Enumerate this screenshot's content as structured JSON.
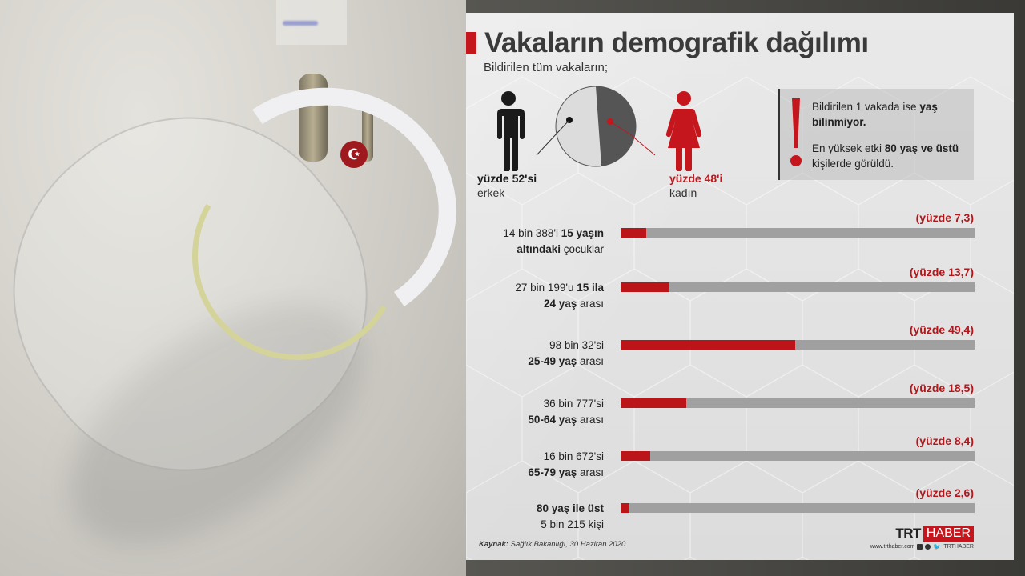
{
  "photo": {
    "description": "face shield hanging on hook with Turkish flag sticker"
  },
  "infographic": {
    "title": "Vakaların demografik dağılımı",
    "subtitle": "Bildirilen tüm vakaların;",
    "male": {
      "pct_label": "yüzde 52'si",
      "label": "erkek"
    },
    "female": {
      "pct_label": "yüzde 48'i",
      "label": "kadın"
    },
    "note": {
      "line1_pre": "Bildirilen 1 vakada ise ",
      "line1_bold": "yaş bilinmiyor.",
      "line2_pre": "En yüksek etki ",
      "line2_bold": "80 yaş ve üstü",
      "line2_post": " kişilerde görüldü."
    },
    "bars": [
      {
        "label_a": "14 bin 388'i ",
        "label_b": "15 yaşın",
        "label_c": "altındaki",
        "label_d": " çocuklar",
        "pct_label": "(yüzde 7,3)",
        "value": 7.3
      },
      {
        "label_a": "27 bin 199'u ",
        "label_b": "15 ila",
        "label_c": "24 yaş",
        "label_d": " arası",
        "pct_label": "(yüzde 13,7)",
        "value": 13.7
      },
      {
        "label_a": "98 bin 32'si",
        "label_b": "",
        "label_c": "25-49 yaş",
        "label_d": " arası",
        "pct_label": "(yüzde 49,4)",
        "value": 49.4
      },
      {
        "label_a": "36 bin 777'si",
        "label_b": "",
        "label_c": "50-64 yaş",
        "label_d": " arası",
        "pct_label": "(yüzde 18,5)",
        "value": 18.5
      },
      {
        "label_a": "16 bin 672'si",
        "label_b": "",
        "label_c": "65-79 yaş",
        "label_d": " arası",
        "pct_label": "(yüzde 8,4)",
        "value": 8.4
      },
      {
        "label_a": "",
        "label_b": "80 yaş ile üst",
        "label_c": "",
        "label_d": "5 bin 215 kişi",
        "pct_label": "(yüzde 2,6)",
        "value": 2.6
      }
    ],
    "source_label": "Kaynak:",
    "source_text": " Sağlık Bakanlığı, 30 Haziran 2020",
    "logo": {
      "trt": "TRT",
      "haber": "HABER",
      "url": "www.trthaber.com",
      "handle": "TRTHABER"
    },
    "colors": {
      "accent": "#c4161c",
      "bar_bg": "#a0a0a0",
      "male": "#1a1a1a",
      "female": "#c4161c"
    }
  },
  "chart_data": [
    {
      "type": "pie",
      "title": "Bildirilen tüm vakaların; (cinsiyet)",
      "categories": [
        "erkek",
        "kadın"
      ],
      "values": [
        52,
        48
      ],
      "labels": [
        "yüzde 52'si erkek",
        "yüzde 48'i kadın"
      ]
    },
    {
      "type": "bar",
      "orientation": "horizontal",
      "title": "Vakaların demografik dağılımı (yaş grupları)",
      "categories": [
        "15 yaşın altındaki çocuklar",
        "15-24 yaş arası",
        "25-49 yaş arası",
        "50-64 yaş arası",
        "65-79 yaş arası",
        "80 yaş ile üst"
      ],
      "values": [
        7.3,
        13.7,
        49.4,
        18.5,
        8.4,
        2.6
      ],
      "counts": [
        "14 bin 388",
        "27 bin 199",
        "98 bin 32",
        "36 bin 777",
        "16 bin 672",
        "5 bin 215"
      ],
      "unit": "yüzde",
      "xlim": [
        0,
        100
      ],
      "source": "Sağlık Bakanlığı, 30 Haziran 2020"
    }
  ]
}
